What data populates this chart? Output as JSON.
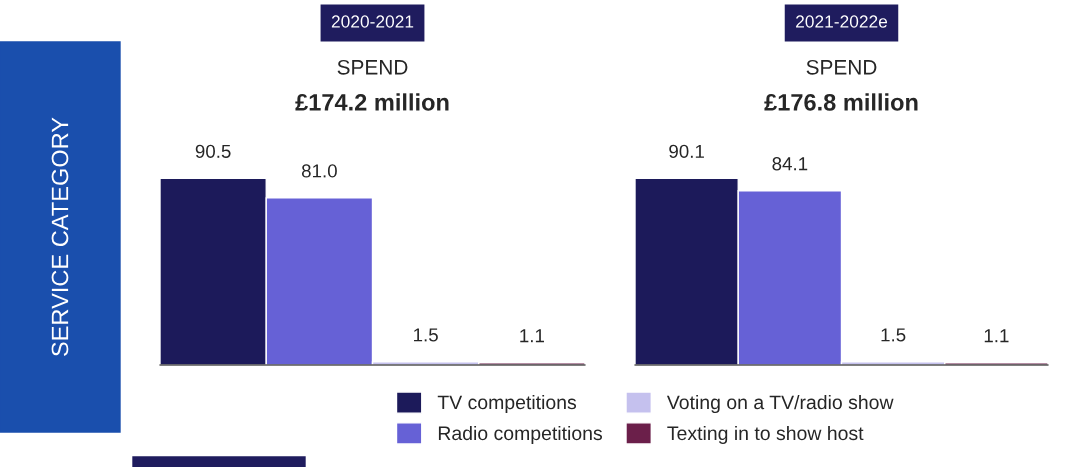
{
  "chart_data": [
    {
      "type": "bar",
      "title": "2020-2021",
      "subtitle": "SPEND",
      "annotations": [
        "£174.2 million"
      ],
      "ylabel": "SERVICE CATEGORY",
      "categories": [
        null
      ],
      "legend": "bottom",
      "series": [
        {
          "name": "TV competitions",
          "color": "#1c1a5a",
          "values": [
            90.5
          ],
          "value_labels": [
            "90.5"
          ]
        },
        {
          "name": "Radio competitions",
          "color": "#6661d6",
          "values": [
            81.0
          ],
          "value_labels": [
            "81.0"
          ]
        },
        {
          "name": "Voting on a TV/radio show",
          "color": "#c5c1ee",
          "values": [
            1.5
          ],
          "value_labels": [
            "1.5"
          ]
        },
        {
          "name": "Texting in to show host",
          "color": "#6b1f4a",
          "values": [
            1.1
          ],
          "value_labels": [
            "1.1"
          ]
        }
      ]
    },
    {
      "type": "bar",
      "title": "2021-2022e",
      "subtitle": "SPEND",
      "annotations": [
        "£176.8 million"
      ],
      "categories": [
        null
      ],
      "series": [
        {
          "color": "#1c1a5a",
          "values": [
            90.1
          ],
          "value_labels": [
            "90.1"
          ]
        },
        {
          "color": "#6661d6",
          "values": [
            84.1
          ],
          "value_labels": [
            "84.1"
          ]
        },
        {
          "color": "#c5c1ee",
          "values": [
            1.5
          ],
          "value_labels": [
            "1.5"
          ]
        },
        {
          "color": "#6b1f4a",
          "values": [
            1.1
          ],
          "value_labels": [
            "1.1"
          ]
        }
      ]
    }
  ]
}
